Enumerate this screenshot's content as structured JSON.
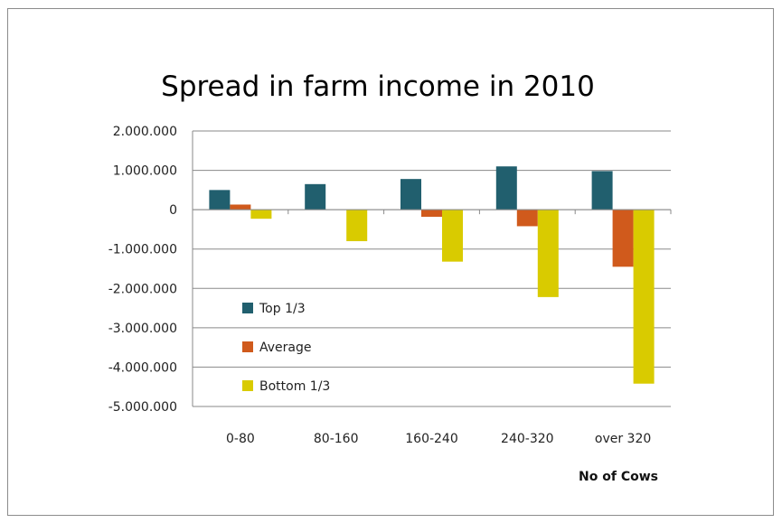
{
  "chart_data": {
    "type": "bar",
    "title": "Spread in farm income in 2010",
    "xlabel": "No of Cows",
    "ylabel": "",
    "categories": [
      "0-80",
      "80-160",
      "160-240",
      "240-320",
      "over 320"
    ],
    "series": [
      {
        "name": "Top 1/3",
        "color": "#215f6e",
        "values": [
          500000,
          650000,
          780000,
          1100000,
          980000
        ]
      },
      {
        "name": "Average",
        "color": "#d05a1c",
        "values": [
          130000,
          0,
          -180000,
          -420000,
          -1450000
        ]
      },
      {
        "name": "Bottom 1/3",
        "color": "#d9cb00",
        "values": [
          -230000,
          -800000,
          -1320000,
          -2220000,
          -4420000
        ]
      }
    ],
    "ylim": [
      -5000000,
      2000000
    ],
    "yticks": [
      2000000,
      1000000,
      0,
      -1000000,
      -2000000,
      -3000000,
      -4000000,
      -5000000
    ],
    "ytick_labels": [
      "2.000.000",
      "1.000.000",
      "0",
      "-1.000.000",
      "-2.000.000",
      "-3.000.000",
      "-4.000.000",
      "-5.000.000"
    ],
    "grid": true,
    "legend_position": "bottom-left inside plot"
  }
}
